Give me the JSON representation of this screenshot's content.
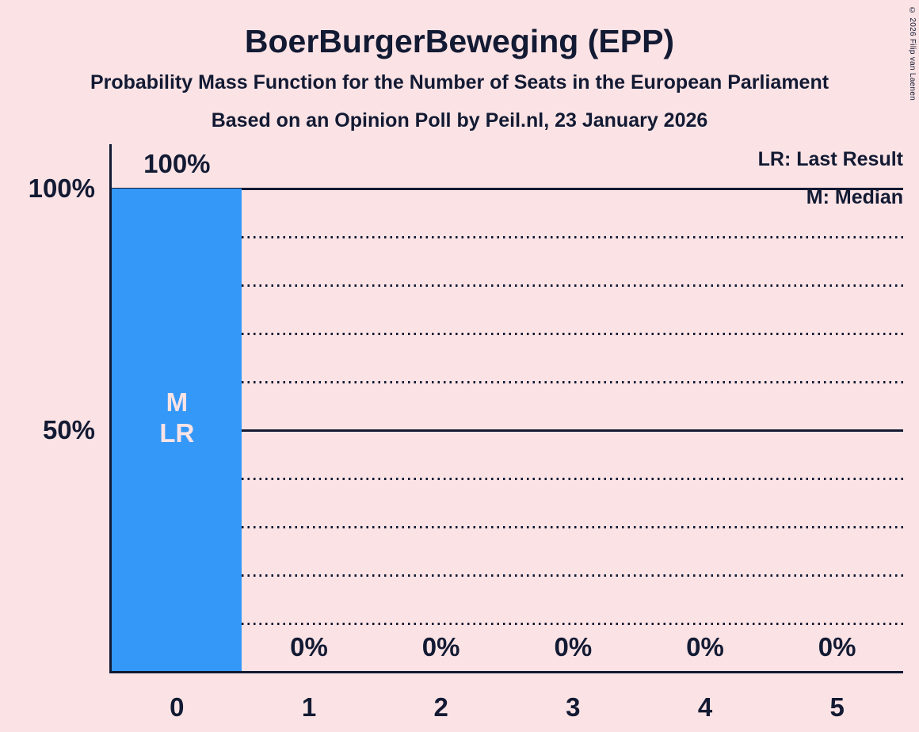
{
  "header": {
    "title": "BoerBurgerBeweging (EPP)",
    "subtitle": "Probability Mass Function for the Number of Seats in the European Parliament",
    "poll_line": "Based on an Opinion Poll by Peil.nl, 23 January 2026"
  },
  "legend": {
    "last_result": "LR: Last Result",
    "median": "M: Median"
  },
  "copyright": "© 2026 Filip van Laenen",
  "colors": {
    "background": "#fbe3e5",
    "bar": "#3498f8",
    "text": "#131a33",
    "bar_label": "#fbe3e5"
  },
  "chart_data": {
    "type": "bar",
    "title": "BoerBurgerBeweging (EPP)",
    "categories": [
      "0",
      "1",
      "2",
      "3",
      "4",
      "5"
    ],
    "values": [
      100,
      0,
      0,
      0,
      0,
      0
    ],
    "value_labels": [
      "100%",
      "0%",
      "0%",
      "0%",
      "0%",
      "0%"
    ],
    "xlabel": "",
    "ylabel": "",
    "ylim": [
      0,
      100
    ],
    "yticks": [
      {
        "value": 100,
        "label": "100%"
      },
      {
        "value": 50,
        "label": "50%"
      }
    ],
    "solid_gridlines": [
      100,
      50
    ],
    "dotted_gridlines": [
      90,
      80,
      70,
      60,
      40,
      30,
      20,
      10
    ],
    "grid": "horizontal-only",
    "legend_position": "top-right",
    "annotations": [
      {
        "category_index": 0,
        "lines": [
          "M",
          "LR"
        ]
      }
    ]
  }
}
